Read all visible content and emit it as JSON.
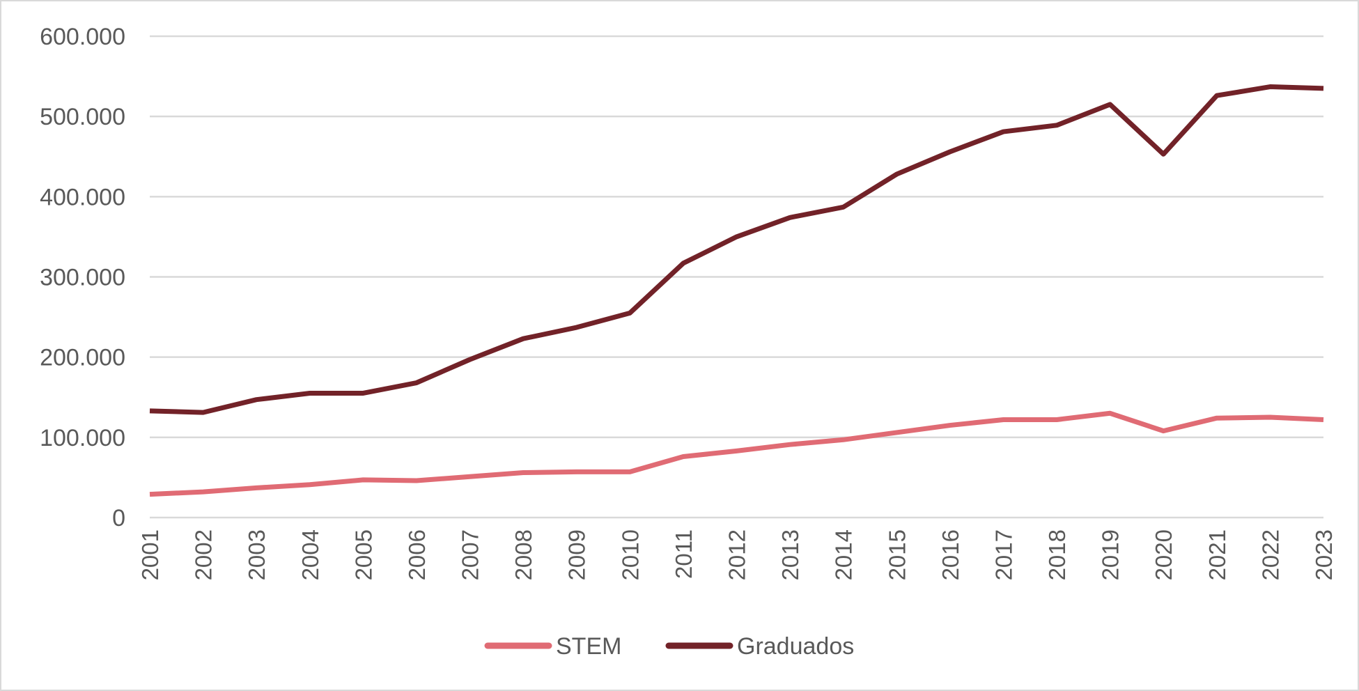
{
  "chart_data": {
    "type": "line",
    "categories": [
      "2001",
      "2002",
      "2003",
      "2004",
      "2005",
      "2006",
      "2007",
      "2008",
      "2009",
      "2010",
      "2011",
      "2012",
      "2013",
      "2014",
      "2015",
      "2016",
      "2017",
      "2018",
      "2019",
      "2020",
      "2021",
      "2022",
      "2023"
    ],
    "series": [
      {
        "name": "STEM",
        "color": "#e06b74",
        "values": [
          29000,
          32000,
          37000,
          41000,
          47000,
          46000,
          51000,
          56000,
          57000,
          57000,
          76000,
          83000,
          91000,
          97000,
          106000,
          115000,
          122000,
          122000,
          130000,
          108000,
          124000,
          125000,
          122000
        ]
      },
      {
        "name": "Graduados",
        "color": "#722228",
        "values": [
          133000,
          131000,
          147000,
          155000,
          155000,
          168000,
          197000,
          223000,
          237000,
          255000,
          317000,
          350000,
          374000,
          387000,
          428000,
          456000,
          481000,
          489000,
          515000,
          453000,
          526000,
          537000,
          535000
        ]
      }
    ],
    "y_ticks": [
      {
        "value": 0,
        "label": "0"
      },
      {
        "value": 100000,
        "label": "100.000"
      },
      {
        "value": 200000,
        "label": "200.000"
      },
      {
        "value": 300000,
        "label": "300.000"
      },
      {
        "value": 400000,
        "label": "400.000"
      },
      {
        "value": 500000,
        "label": "500.000"
      },
      {
        "value": 600000,
        "label": "600.000"
      }
    ],
    "ylim": [
      0,
      600000
    ],
    "grid": true,
    "legend": "bottom",
    "title": "",
    "xlabel": "",
    "ylabel": ""
  }
}
